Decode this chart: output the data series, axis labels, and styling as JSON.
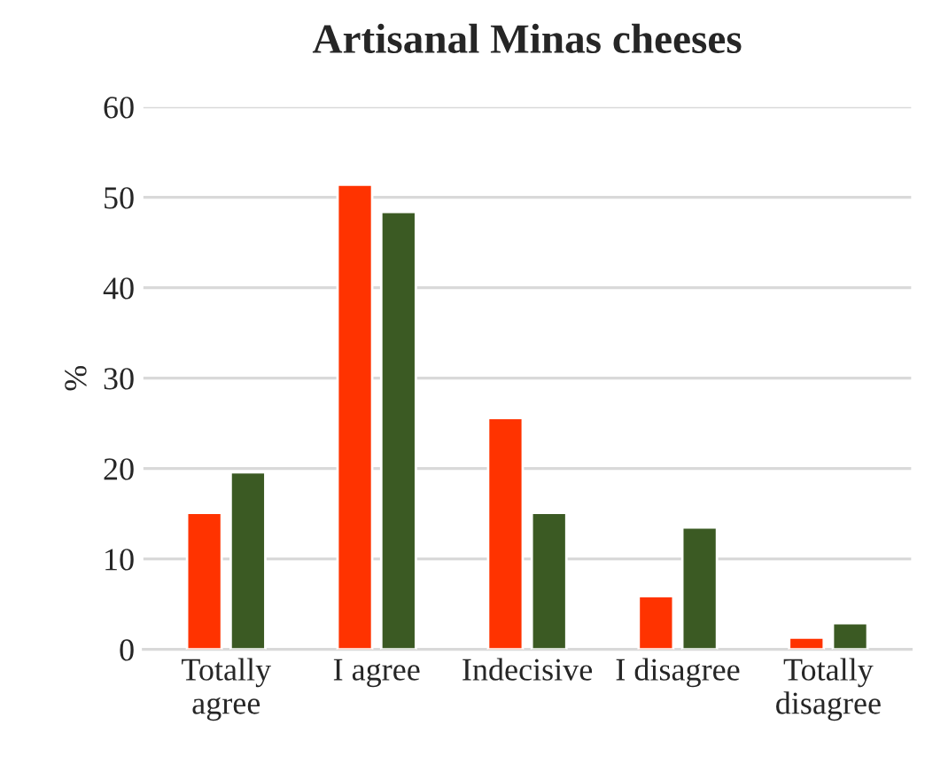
{
  "chart_data": {
    "type": "bar",
    "title": "Artisanal Minas cheeses",
    "ylabel": "%",
    "categories": [
      "Totally\nagree",
      "I agree",
      "Indecisive",
      "I disagree",
      "Totally\ndisagree"
    ],
    "series": [
      {
        "color": "#ff3300",
        "values": [
          15.1,
          51.4,
          25.6,
          5.9,
          1.3
        ]
      },
      {
        "color": "#3b5a23",
        "values": [
          19.6,
          48.4,
          15.1,
          13.5,
          2.9
        ]
      }
    ],
    "ylim": [
      0,
      60
    ],
    "yticks": [
      0,
      10,
      20,
      30,
      40,
      50,
      60
    ],
    "grid": "y",
    "legend": false
  }
}
